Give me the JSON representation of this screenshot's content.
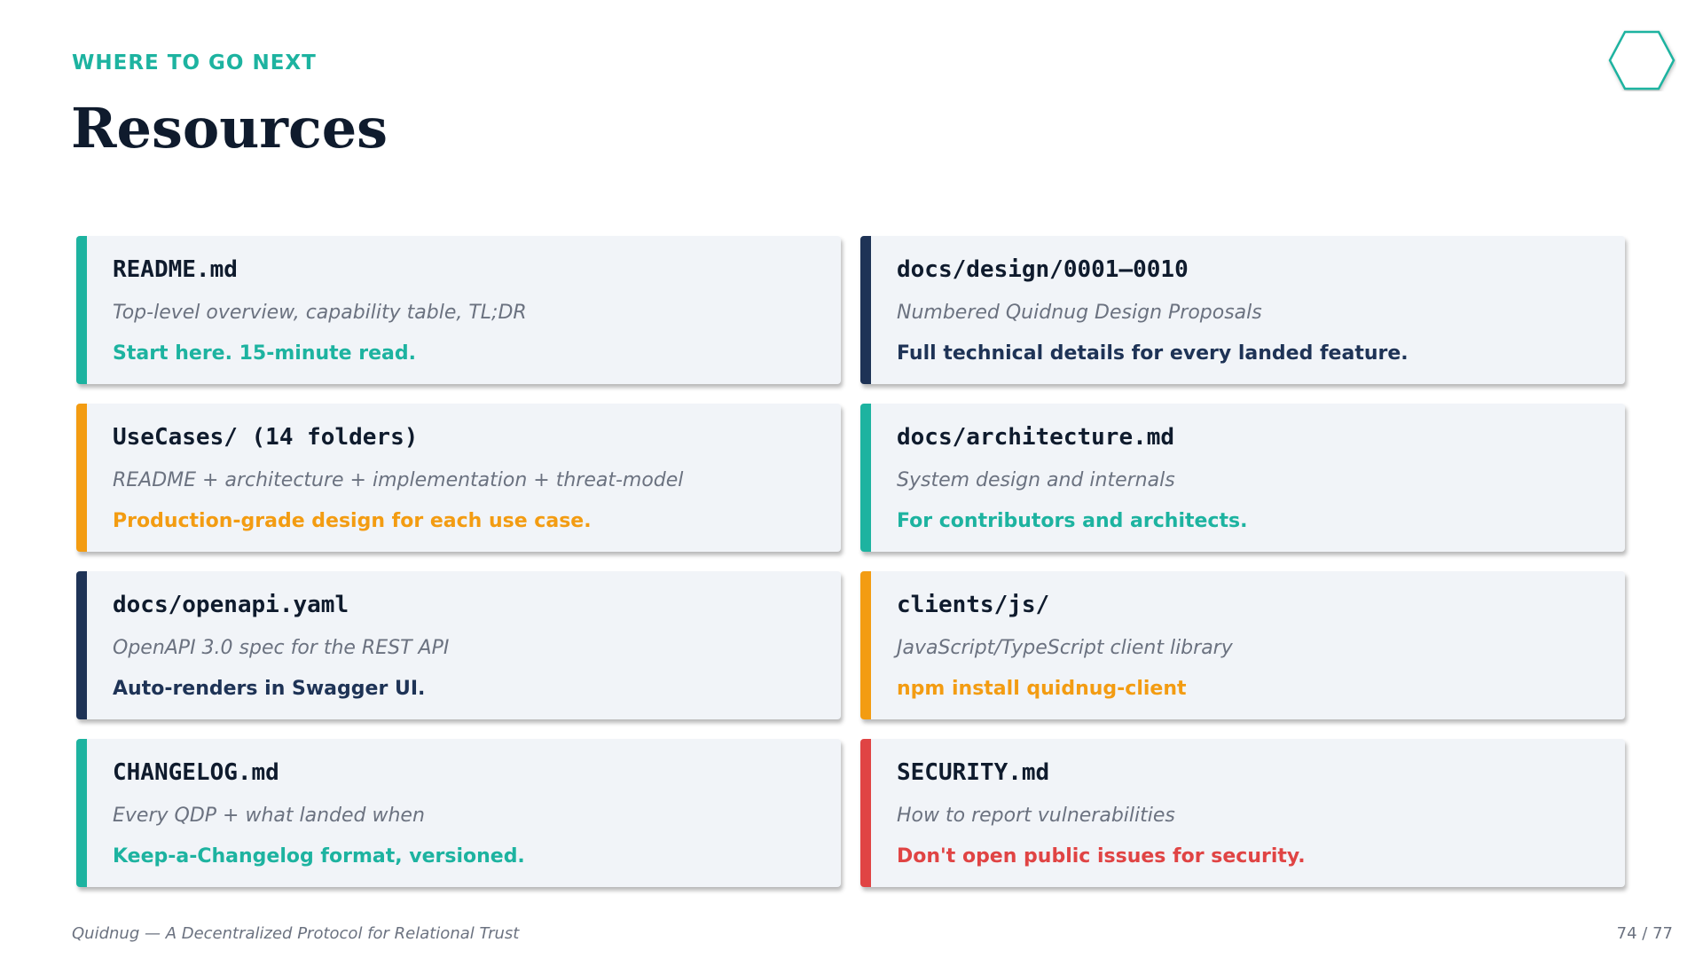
{
  "header": {
    "kicker": "WHERE TO GO NEXT",
    "title": "Resources",
    "logo_icon": "hexagon-outline-icon",
    "accent_color": "#1db3a0"
  },
  "cards": [
    {
      "name": "README.md",
      "description": "Top-level overview, capability table, TL;DR",
      "note": "Start here. 15-minute read.",
      "color": "#1db3a0"
    },
    {
      "name": "docs/design/0001–0010",
      "description": "Numbered Quidnug Design Proposals",
      "note": "Full technical details for every landed feature.",
      "color": "#1e3356"
    },
    {
      "name": "UseCases/ (14 folders)",
      "description": "README + architecture + implementation + threat-model",
      "note": "Production-grade design for each use case.",
      "color": "#f39c12"
    },
    {
      "name": "docs/architecture.md",
      "description": "System design and internals",
      "note": "For contributors and architects.",
      "color": "#1db3a0"
    },
    {
      "name": "docs/openapi.yaml",
      "description": "OpenAPI 3.0 spec for the REST API",
      "note": "Auto-renders in Swagger UI.",
      "color": "#1e3356"
    },
    {
      "name": "clients/js/",
      "description": "JavaScript/TypeScript client library",
      "note": "npm install quidnug-client",
      "color": "#f39c12"
    },
    {
      "name": "CHANGELOG.md",
      "description": "Every QDP + what landed when",
      "note": "Keep-a-Changelog format, versioned.",
      "color": "#1db3a0"
    },
    {
      "name": "SECURITY.md",
      "description": "How to report vulnerabilities",
      "note": "Don't open public issues for security.",
      "color": "#e04444"
    }
  ],
  "footer": {
    "left": "Quidnug — A Decentralized Protocol for Relational Trust",
    "page": "74 / 77"
  }
}
